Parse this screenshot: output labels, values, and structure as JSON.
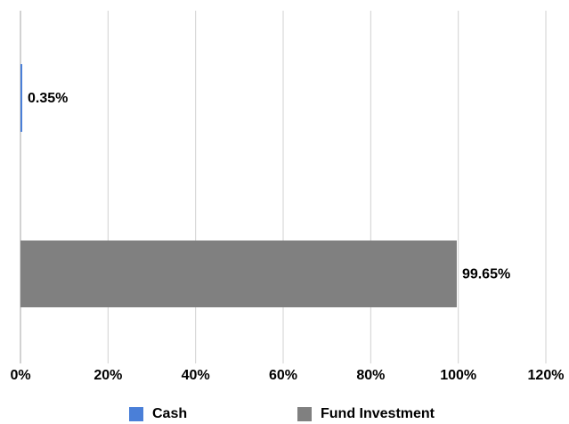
{
  "chart_data": {
    "type": "bar",
    "orientation": "horizontal",
    "categories": [
      "Cash",
      "Fund Investment"
    ],
    "values": [
      0.35,
      99.65
    ],
    "data_labels": [
      "0.35%",
      "99.65%"
    ],
    "xlim": [
      0,
      120
    ],
    "xticks": [
      0,
      20,
      40,
      60,
      80,
      100,
      120
    ],
    "xtick_labels": [
      "0%",
      "20%",
      "40%",
      "60%",
      "80%",
      "100%",
      "120%"
    ],
    "grid": "vertical",
    "legend_position": "bottom",
    "colors": [
      "#4a7fd8",
      "#808080"
    ],
    "legend": [
      {
        "label": "Cash",
        "color": "#4a7fd8"
      },
      {
        "label": "Fund Investment",
        "color": "#808080"
      }
    ]
  }
}
